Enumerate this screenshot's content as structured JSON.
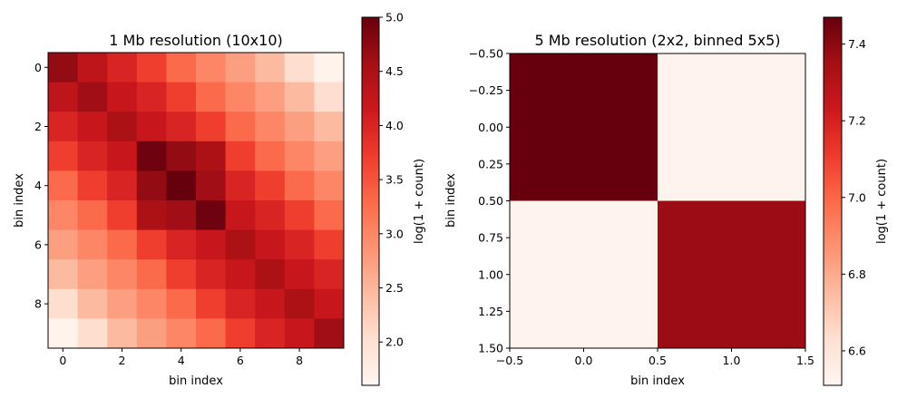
{
  "chart_data": [
    {
      "type": "heatmap",
      "title": "1 Mb resolution (10x10)",
      "xlabel": "bin index",
      "ylabel": "bin index",
      "colorbar_label": "log(1 + count)",
      "colormap": "Reds",
      "x_ticks": [
        0,
        2,
        4,
        6,
        8
      ],
      "y_ticks": [
        0,
        2,
        4,
        6,
        8
      ],
      "x_tick_labels": [
        "0",
        "2",
        "4",
        "6",
        "8"
      ],
      "y_tick_labels": [
        "0",
        "2",
        "4",
        "6",
        "8"
      ],
      "xlim": [
        -0.5,
        9.5
      ],
      "ylim": [
        9.5,
        -0.5
      ],
      "clim": [
        1.6,
        5.0
      ],
      "colorbar_ticks": [
        2.0,
        2.5,
        3.0,
        3.5,
        4.0,
        4.5,
        5.0
      ],
      "colorbar_tick_labels": [
        "2.0",
        "2.5",
        "3.0",
        "3.5",
        "4.0",
        "4.5",
        "5.0"
      ],
      "values": [
        [
          4.7,
          4.3,
          4.0,
          3.7,
          3.3,
          3.0,
          2.75,
          2.45,
          2.05,
          1.65
        ],
        [
          4.3,
          4.6,
          4.2,
          4.0,
          3.7,
          3.3,
          3.0,
          2.75,
          2.45,
          2.05
        ],
        [
          4.0,
          4.2,
          4.5,
          4.2,
          4.0,
          3.7,
          3.3,
          3.0,
          2.75,
          2.45
        ],
        [
          3.7,
          4.0,
          4.2,
          4.95,
          4.7,
          4.5,
          3.7,
          3.3,
          3.0,
          2.75
        ],
        [
          3.3,
          3.7,
          4.0,
          4.7,
          5.0,
          4.6,
          4.0,
          3.7,
          3.3,
          3.0
        ],
        [
          3.0,
          3.3,
          3.7,
          4.5,
          4.6,
          4.95,
          4.2,
          4.0,
          3.7,
          3.3
        ],
        [
          2.75,
          3.0,
          3.3,
          3.7,
          4.0,
          4.2,
          4.5,
          4.2,
          4.0,
          3.7
        ],
        [
          2.45,
          2.75,
          3.0,
          3.3,
          3.7,
          4.0,
          4.2,
          4.5,
          4.2,
          4.0
        ],
        [
          2.05,
          2.45,
          2.75,
          3.0,
          3.3,
          3.7,
          4.0,
          4.2,
          4.5,
          4.2
        ],
        [
          1.65,
          2.05,
          2.45,
          2.75,
          3.0,
          3.3,
          3.7,
          4.0,
          4.2,
          4.6
        ]
      ]
    },
    {
      "type": "heatmap",
      "title": "5 Mb resolution (2x2, binned 5x5)",
      "xlabel": "bin index",
      "ylabel": "bin index",
      "colorbar_label": "log(1 + count)",
      "colormap": "Reds",
      "x_ticks": [
        -0.5,
        0.0,
        0.5,
        1.0,
        1.5
      ],
      "x_tick_labels": [
        "−0.5",
        "0.0",
        "0.5",
        "1.0",
        "1.5"
      ],
      "y_ticks": [
        -0.5,
        -0.25,
        0.0,
        0.25,
        0.5,
        0.75,
        1.0,
        1.25,
        1.5
      ],
      "y_tick_labels": [
        "−0.50",
        "−0.25",
        "0.00",
        "0.25",
        "0.50",
        "0.75",
        "1.00",
        "1.25",
        "1.50"
      ],
      "xlim": [
        -0.5,
        1.5
      ],
      "ylim": [
        1.5,
        -0.5
      ],
      "clim": [
        6.51,
        7.47
      ],
      "colorbar_ticks": [
        6.6,
        6.8,
        7.0,
        7.2,
        7.4
      ],
      "colorbar_tick_labels": [
        "6.6",
        "6.8",
        "7.0",
        "7.2",
        "7.4"
      ],
      "values": [
        [
          7.47,
          6.52
        ],
        [
          6.52,
          7.37
        ]
      ]
    }
  ]
}
